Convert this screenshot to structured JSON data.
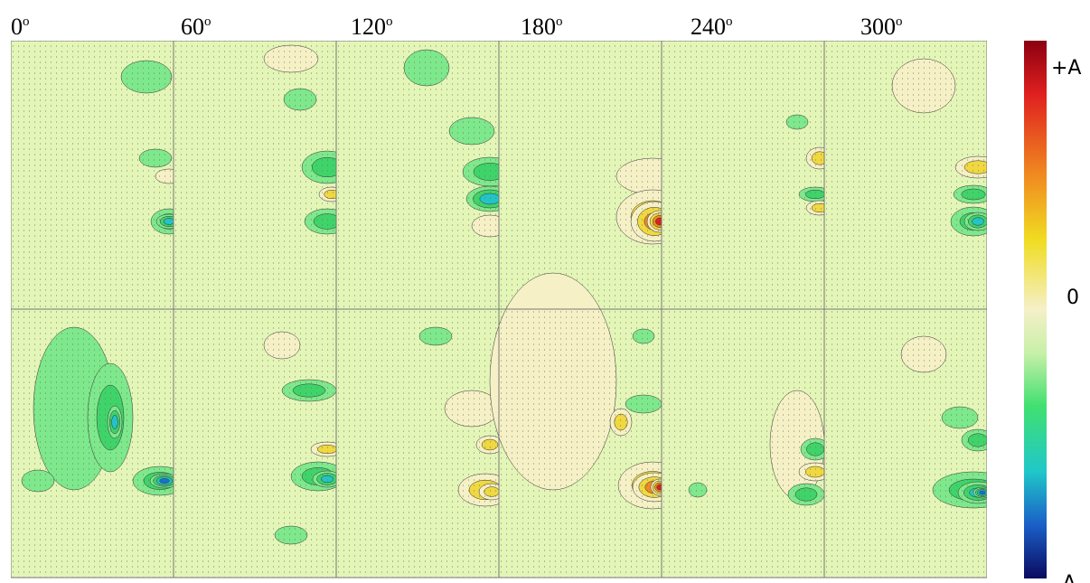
{
  "columns": [
    {
      "angle": "0",
      "unit": "o"
    },
    {
      "angle": "60",
      "unit": "o"
    },
    {
      "angle": "120",
      "unit": "o"
    },
    {
      "angle": "180",
      "unit": "o"
    },
    {
      "angle": "240",
      "unit": "o"
    },
    {
      "angle": "300",
      "unit": "o"
    }
  ],
  "colorbar": {
    "top": "+A",
    "middle": "0",
    "bottom": "-A"
  }
}
